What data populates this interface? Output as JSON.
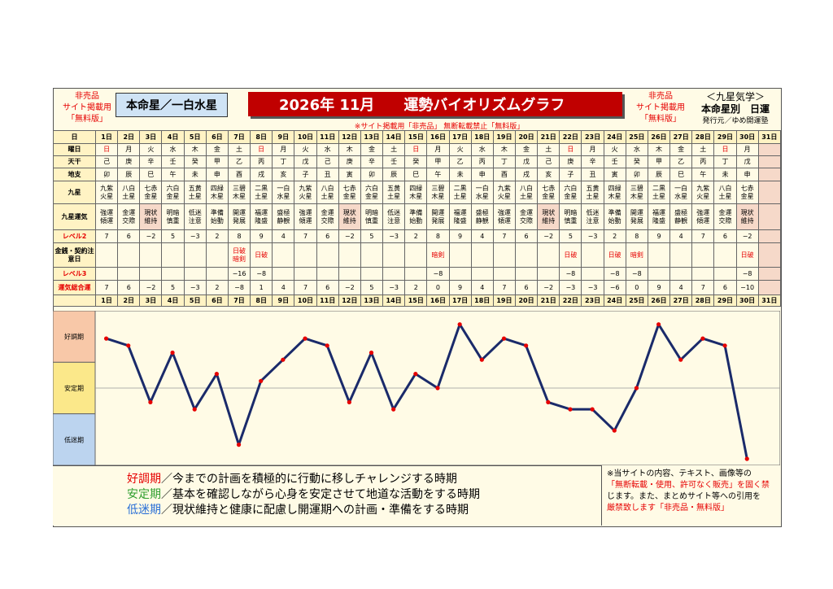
{
  "header": {
    "left_notice": [
      "非売品",
      "サイト掲載用",
      "「無料版」"
    ],
    "honmei": "本命星／一白水星",
    "title": "2026年 11月　　運勢バイオリズムグラフ",
    "center_notice": "※サイト掲載用「非売品」 無断転載禁止「無料版」",
    "right_notice": [
      "非売品",
      "サイト掲載用",
      "「無料版」"
    ],
    "right_info": [
      "＜九星気学＞",
      "本命星別　日運",
      "発行元／ゆめ開運塾"
    ]
  },
  "table": {
    "row_labels": {
      "day": "日",
      "weekday": "曜日",
      "tenkan": "天干",
      "chishi": "地支",
      "kyusei": "九星",
      "unki": "九星運気",
      "level2": "レベル2",
      "kinsen": "金銭・契約注意日",
      "level3": "レベル3",
      "sogo": "運気総合運"
    },
    "days": [
      "1日",
      "2日",
      "3日",
      "4日",
      "5日",
      "6日",
      "7日",
      "8日",
      "9日",
      "10日",
      "11日",
      "12日",
      "13日",
      "14日",
      "15日",
      "16日",
      "17日",
      "18日",
      "19日",
      "20日",
      "21日",
      "22日",
      "23日",
      "24日",
      "25日",
      "26日",
      "27日",
      "28日",
      "29日",
      "30日",
      "31日"
    ],
    "weekdays": [
      "日",
      "月",
      "火",
      "水",
      "木",
      "金",
      "土",
      "日",
      "月",
      "火",
      "水",
      "木",
      "金",
      "土",
      "日",
      "月",
      "火",
      "水",
      "木",
      "金",
      "土",
      "日",
      "月",
      "火",
      "水",
      "木",
      "金",
      "土",
      "日",
      "月",
      ""
    ],
    "tenkan": [
      "己",
      "庚",
      "辛",
      "壬",
      "癸",
      "甲",
      "乙",
      "丙",
      "丁",
      "戊",
      "己",
      "庚",
      "辛",
      "壬",
      "癸",
      "甲",
      "乙",
      "丙",
      "丁",
      "戊",
      "己",
      "庚",
      "辛",
      "壬",
      "癸",
      "甲",
      "乙",
      "丙",
      "丁",
      "戊",
      ""
    ],
    "chishi": [
      "卯",
      "辰",
      "巳",
      "午",
      "未",
      "申",
      "酉",
      "戌",
      "亥",
      "子",
      "丑",
      "寅",
      "卯",
      "辰",
      "巳",
      "午",
      "未",
      "申",
      "酉",
      "戌",
      "亥",
      "子",
      "丑",
      "寅",
      "卯",
      "辰",
      "巳",
      "午",
      "未",
      "申",
      ""
    ],
    "kyusei": [
      "九紫\n火星",
      "八白\n土星",
      "七赤\n金星",
      "六白\n金星",
      "五黄\n土星",
      "四緑\n木星",
      "三碧\n木星",
      "二黒\n土星",
      "一白\n水星",
      "九紫\n火星",
      "八白\n土星",
      "七赤\n金星",
      "六白\n金星",
      "五黄\n土星",
      "四緑\n木星",
      "三碧\n木星",
      "二黒\n土星",
      "一白\n水星",
      "九紫\n火星",
      "八白\n土星",
      "七赤\n金星",
      "六白\n金星",
      "五黄\n土星",
      "四緑\n木星",
      "三碧\n木星",
      "二黒\n土星",
      "一白\n水星",
      "九紫\n火星",
      "八白\n土星",
      "七赤\n金星",
      ""
    ],
    "unki": [
      "強運\n傾運",
      "金運\n交際",
      "現状\n維持",
      "明暗\n慎重",
      "低迷\n注意",
      "準備\n始動",
      "開運\n発展",
      "福運\n隆盛",
      "盛極\n静観",
      "強運\n傾運",
      "金運\n交際",
      "現状\n維持",
      "明暗\n慎重",
      "低迷\n注意",
      "準備\n始動",
      "開運\n発展",
      "福運\n隆盛",
      "盛極\n静観",
      "強運\n傾運",
      "金運\n交際",
      "現状\n維持",
      "明暗\n慎重",
      "低迷\n注意",
      "準備\n始動",
      "開運\n発展",
      "福運\n隆盛",
      "盛極\n静観",
      "強運\n傾運",
      "金運\n交際",
      "現状\n維持",
      ""
    ],
    "level2": [
      "7",
      "6",
      "−2",
      "5",
      "−3",
      "2",
      "8",
      "9",
      "4",
      "7",
      "6",
      "−2",
      "5",
      "−3",
      "2",
      "8",
      "9",
      "4",
      "7",
      "6",
      "−2",
      "5",
      "−3",
      "2",
      "8",
      "9",
      "4",
      "7",
      "6",
      "−2",
      ""
    ],
    "kinsen": [
      "",
      "",
      "",
      "",
      "",
      "",
      "日破\n暗剣",
      "日破",
      "",
      "",
      "",
      "",
      "",
      "",
      "",
      "暗剣",
      "",
      "",
      "",
      "",
      "",
      "日破",
      "",
      "日破",
      "暗剣",
      "",
      "",
      "",
      "",
      "日破",
      ""
    ],
    "level3": [
      "",
      "",
      "",
      "",
      "",
      "",
      "−16",
      "−8",
      "",
      "",
      "",
      "",
      "",
      "",
      "",
      "−8",
      "",
      "",
      "",
      "",
      "",
      "−8",
      "",
      "−8",
      "−8",
      "",
      "",
      "",
      "",
      "−8",
      ""
    ],
    "sogo": [
      "7",
      "6",
      "−2",
      "5",
      "−3",
      "2",
      "−8",
      "1",
      "4",
      "7",
      "6",
      "−2",
      "5",
      "−3",
      "2",
      "0",
      "9",
      "4",
      "7",
      "6",
      "−2",
      "−3",
      "−3",
      "−6",
      "0",
      "9",
      "4",
      "7",
      "6",
      "−10",
      ""
    ]
  },
  "plot_labels": {
    "good": "好調期",
    "stable": "安定期",
    "low": "低迷期"
  },
  "legend": {
    "lines": [
      {
        "key": "好調期",
        "text": "／今までの計画を積極的に行動に移しチャレンジする時期",
        "color": "#e60000"
      },
      {
        "key": "安定期",
        "text": "／基本を確認しながら心身を安定させて地道な活動をする時期",
        "color": "#2e9e2e"
      },
      {
        "key": "低迷期",
        "text": "／現状維持と健康に配慮し開運期への計画・準備をする時期",
        "color": "#2a6fd6"
      }
    ],
    "copyright": [
      "※当サイトの内容、テキスト、画像等の",
      "「無断転載・使用、許可なく販売」を固く禁",
      "じます。また、まとめサイト等への引用を",
      "厳禁致します「非売品・無料版」"
    ]
  },
  "chart_data": {
    "type": "line",
    "x": [
      1,
      2,
      3,
      4,
      5,
      6,
      7,
      8,
      9,
      10,
      11,
      12,
      13,
      14,
      15,
      16,
      17,
      18,
      19,
      20,
      21,
      22,
      23,
      24,
      25,
      26,
      27,
      28,
      29,
      30
    ],
    "series": [
      {
        "values": [
          7,
          6,
          -2,
          5,
          -3,
          2,
          -8,
          1,
          4,
          7,
          6,
          -2,
          5,
          -3,
          2,
          0,
          9,
          4,
          7,
          6,
          -2,
          -3,
          -3,
          -6,
          0,
          9,
          4,
          7,
          6,
          -10
        ]
      }
    ],
    "ylim": [
      -10,
      10
    ],
    "bands": [
      {
        "label": "好調期",
        "color": "#f8c8a8"
      },
      {
        "label": "安定期",
        "color": "#fbe88a"
      },
      {
        "label": "低迷期",
        "color": "#bcd4ef"
      }
    ],
    "line_color": "#1a2a6a",
    "marker_color": "#e60000"
  }
}
